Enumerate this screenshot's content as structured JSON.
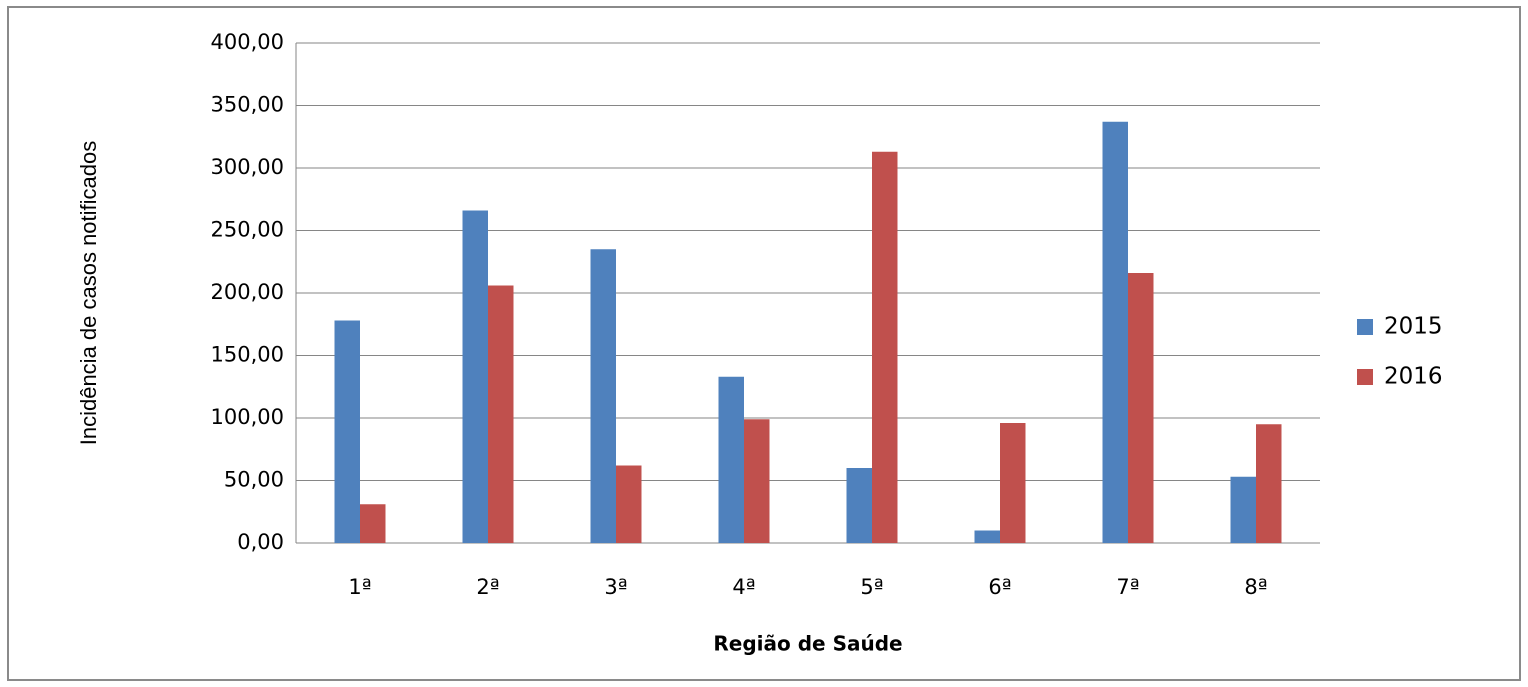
{
  "chart_data": {
    "type": "bar",
    "y_label": "Incidência de casos notificados",
    "x_label": "Região de Saúde",
    "categories": [
      "1ª",
      "2ª",
      "3ª",
      "4ª",
      "5ª",
      "6ª",
      "7ª",
      "8ª"
    ],
    "series": [
      {
        "name": "2015",
        "color": "#4f81bd",
        "values": [
          178,
          266,
          235,
          133,
          60,
          10,
          337,
          53
        ]
      },
      {
        "name": "2016",
        "color": "#c0504d",
        "values": [
          31,
          206,
          62,
          99,
          313,
          96,
          216,
          95
        ]
      }
    ],
    "ylim": [
      0,
      400
    ],
    "yticks": [
      {
        "value": 0,
        "label": "0,00"
      },
      {
        "value": 50,
        "label": "50,00"
      },
      {
        "value": 100,
        "label": "100,00"
      },
      {
        "value": 150,
        "label": "150,00"
      },
      {
        "value": 200,
        "label": "200,00"
      },
      {
        "value": 250,
        "label": "250,00"
      },
      {
        "value": 300,
        "label": "300,00"
      },
      {
        "value": 350,
        "label": "350,00"
      },
      {
        "value": 400,
        "label": "400,00"
      }
    ],
    "grid": true,
    "legend": "right"
  }
}
